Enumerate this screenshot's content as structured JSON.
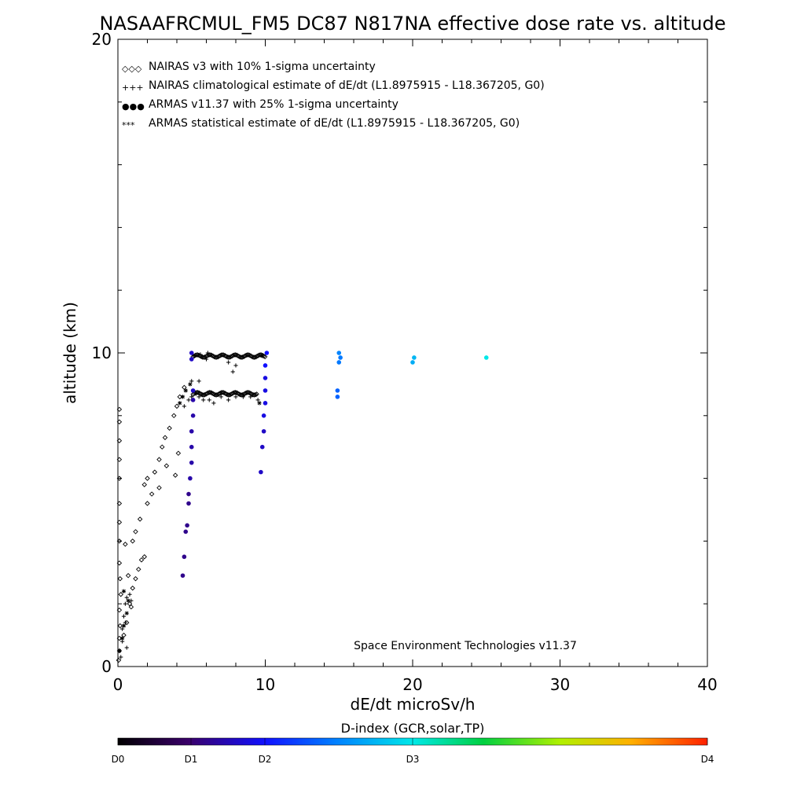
{
  "chart_data": {
    "type": "scatter",
    "title": "NASAAFRCMUL_FM5 DC87 N817NA effective dose rate vs. altitude",
    "xlabel": "dE/dt microSv/h",
    "ylabel": "altitude (km)",
    "xlim": [
      0,
      40
    ],
    "ylim": [
      0,
      20
    ],
    "x_ticks": [
      "0",
      "10",
      "20",
      "30",
      "40"
    ],
    "y_ticks": [
      "0",
      "10",
      "20"
    ],
    "annotation": "Space Environment Technologies v11.37",
    "legend_position": "top-left",
    "legend": [
      {
        "marker": "◇◇◇",
        "label": "NAIRAS v3 with 10% 1-sigma uncertainty"
      },
      {
        "marker": "+++",
        "label": "NAIRAS climatological estimate of dE/dt (L1.8975915 - L18.367205, G0)"
      },
      {
        "marker": "●●●",
        "label": "ARMAS v11.37 with 25% 1-sigma uncertainty"
      },
      {
        "marker": "***",
        "label": "ARMAS statistical estimate of dE/dt (L1.8975915 - L18.367205, G0)"
      }
    ],
    "colorbar": {
      "title": "D-index (GCR,solar,TP)",
      "labels": [
        "D0",
        "D1",
        "D2",
        "D3",
        "D4"
      ],
      "label_values": [
        0,
        0.5,
        1,
        2,
        4
      ],
      "range": [
        0,
        4
      ]
    },
    "series": [
      {
        "marker": "diamond",
        "color": "#000000",
        "points": [
          [
            0.05,
            0.2
          ],
          [
            0.1,
            0.5
          ],
          [
            0.1,
            0.9
          ],
          [
            0.15,
            1.3
          ],
          [
            0.1,
            1.8
          ],
          [
            0.2,
            2.3
          ],
          [
            0.15,
            2.8
          ],
          [
            0.1,
            3.3
          ],
          [
            0.1,
            4.0
          ],
          [
            0.1,
            4.6
          ],
          [
            0.1,
            5.2
          ],
          [
            0.1,
            6.0
          ],
          [
            0.1,
            6.6
          ],
          [
            0.1,
            7.2
          ],
          [
            0.1,
            7.8
          ],
          [
            0.1,
            8.2
          ],
          [
            0.4,
            1.0
          ],
          [
            0.6,
            1.4
          ],
          [
            0.8,
            2.0
          ],
          [
            1.0,
            2.5
          ],
          [
            1.2,
            2.8
          ],
          [
            1.4,
            3.1
          ],
          [
            1.6,
            3.4
          ],
          [
            1.8,
            3.5
          ],
          [
            1.0,
            4.0
          ],
          [
            1.2,
            4.3
          ],
          [
            1.5,
            4.7
          ],
          [
            2.0,
            5.2
          ],
          [
            2.3,
            5.5
          ],
          [
            1.8,
            5.8
          ],
          [
            2.0,
            6.0
          ],
          [
            2.5,
            6.2
          ],
          [
            2.8,
            6.6
          ],
          [
            3.0,
            7.0
          ],
          [
            3.2,
            7.3
          ],
          [
            3.5,
            7.6
          ],
          [
            3.8,
            8.0
          ],
          [
            4.0,
            8.3
          ],
          [
            4.2,
            8.6
          ],
          [
            4.5,
            8.9
          ],
          [
            2.8,
            5.7
          ],
          [
            3.3,
            6.4
          ],
          [
            3.9,
            6.1
          ],
          [
            4.1,
            6.8
          ],
          [
            0.5,
            3.9
          ],
          [
            0.7,
            2.9
          ],
          [
            0.9,
            1.9
          ]
        ]
      },
      {
        "marker": "plus",
        "color": "#000000",
        "points": [
          [
            0.2,
            0.3
          ],
          [
            0.3,
            0.8
          ],
          [
            0.3,
            1.2
          ],
          [
            0.4,
            1.6
          ],
          [
            0.5,
            2.0
          ],
          [
            0.6,
            2.2
          ],
          [
            0.8,
            2.3
          ],
          [
            0.9,
            2.1
          ],
          [
            0.5,
            1.4
          ],
          [
            0.6,
            0.6
          ],
          [
            4.5,
            8.3
          ],
          [
            4.8,
            8.5
          ],
          [
            5.0,
            8.6
          ],
          [
            5.3,
            8.7
          ],
          [
            5.5,
            8.6
          ],
          [
            5.8,
            8.5
          ],
          [
            6.2,
            8.5
          ],
          [
            6.5,
            8.4
          ],
          [
            7.0,
            8.6
          ],
          [
            7.5,
            8.5
          ],
          [
            8.0,
            8.6
          ],
          [
            8.5,
            8.6
          ],
          [
            9.0,
            8.6
          ],
          [
            9.5,
            8.5
          ],
          [
            5.0,
            9.1
          ],
          [
            5.5,
            9.1
          ],
          [
            6.0,
            9.8
          ],
          [
            7.5,
            9.7
          ],
          [
            8.0,
            9.6
          ],
          [
            7.8,
            9.4
          ],
          [
            5.2,
            9.9
          ],
          [
            5.6,
            9.95
          ],
          [
            6.1,
            10.0
          ]
        ]
      },
      {
        "marker": "dot",
        "color_by_index": true,
        "points": [
          [
            4.4,
            2.9,
            0.3
          ],
          [
            4.5,
            3.5,
            0.3
          ],
          [
            4.6,
            4.3,
            0.3
          ],
          [
            4.7,
            4.5,
            0.3
          ],
          [
            4.8,
            5.2,
            0.3
          ],
          [
            4.8,
            5.5,
            0.3
          ],
          [
            4.9,
            6.0,
            0.35
          ],
          [
            5.0,
            6.5,
            0.35
          ],
          [
            5.0,
            7.0,
            0.35
          ],
          [
            5.0,
            7.5,
            0.35
          ],
          [
            5.1,
            8.0,
            0.35
          ],
          [
            5.1,
            8.5,
            0.35
          ],
          [
            5.1,
            8.8,
            0.4
          ],
          [
            5.0,
            9.8,
            0.4
          ],
          [
            5.0,
            10.0,
            0.4
          ],
          [
            9.7,
            6.2,
            0.4
          ],
          [
            9.8,
            7.0,
            0.4
          ],
          [
            9.9,
            7.5,
            0.4
          ],
          [
            9.9,
            8.0,
            0.45
          ],
          [
            10.0,
            8.4,
            0.45
          ],
          [
            10.0,
            8.8,
            0.45
          ],
          [
            10.0,
            9.2,
            0.45
          ],
          [
            10.0,
            9.6,
            0.5
          ],
          [
            10.1,
            10.0,
            0.5
          ],
          [
            14.9,
            8.6,
            0.85
          ],
          [
            14.9,
            8.8,
            0.85
          ],
          [
            15.0,
            9.7,
            0.95
          ],
          [
            15.1,
            9.85,
            0.95
          ],
          [
            15.0,
            10.0,
            1.0
          ],
          [
            20.0,
            9.7,
            1.2
          ],
          [
            20.1,
            9.85,
            1.25
          ],
          [
            25.0,
            9.85,
            1.5
          ]
        ]
      },
      {
        "marker": "asterisk",
        "color": "#000000",
        "points": [
          [
            0.1,
            0.5
          ],
          [
            0.3,
            0.9
          ],
          [
            0.4,
            1.3
          ],
          [
            0.6,
            1.7
          ],
          [
            0.7,
            2.1
          ],
          [
            0.4,
            2.4
          ],
          [
            4.2,
            8.4
          ],
          [
            4.4,
            8.6
          ],
          [
            4.6,
            8.8
          ],
          [
            4.9,
            9.0
          ],
          [
            9.6,
            8.4
          ],
          [
            9.8,
            9.9
          ]
        ]
      }
    ]
  }
}
